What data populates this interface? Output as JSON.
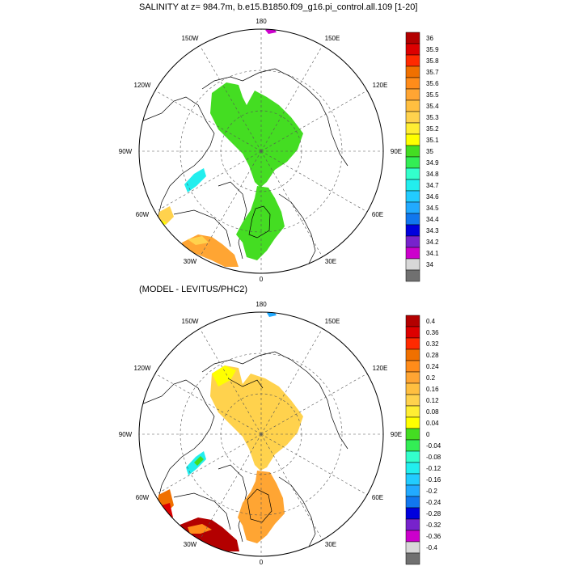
{
  "map1": {
    "title": "SALINITY at z= 984.7m, b.e15.B1850.f09_g16.pi_control.all.109 [1-20]",
    "lon_labels": {
      "top": "180",
      "top_left": "150W",
      "top_right": "150E",
      "upper_left": "120W",
      "upper_right": "120E",
      "left": "90W",
      "right": "90E",
      "lower_left": "60W",
      "lower_right": "60E",
      "bottom_left": "30W",
      "bottom_right": "30E",
      "bottom": "0"
    },
    "colorbar_labels": [
      "36",
      "35.9",
      "35.8",
      "35.7",
      "35.6",
      "35.5",
      "35.4",
      "35.3",
      "35.2",
      "35.1",
      "35",
      "34.9",
      "34.8",
      "34.7",
      "34.6",
      "34.5",
      "34.4",
      "34.3",
      "34.2",
      "34.1",
      "34"
    ],
    "colorbar_colors": [
      "#b30000",
      "#dd0000",
      "#ff2a00",
      "#f07000",
      "#ff8c1a",
      "#ffa533",
      "#ffbf40",
      "#ffd24d",
      "#ffee33",
      "#ffff00",
      "#44dd22",
      "#33ee55",
      "#33ffcc",
      "#22eeee",
      "#22ccff",
      "#22aaff",
      "#1177ee",
      "#0000dd",
      "#7722cc",
      "#cc00cc",
      "#d8d8d8",
      "#707070"
    ]
  },
  "map2": {
    "title": "(MODEL - LEVITUS/PHC2)",
    "lon_labels": {
      "top": "180",
      "top_left": "150W",
      "top_right": "150E",
      "upper_left": "120W",
      "upper_right": "120E",
      "left": "90W",
      "right": "90E",
      "lower_left": "60W",
      "lower_right": "60E",
      "bottom_left": "30W",
      "bottom_right": "30E",
      "bottom": "0"
    },
    "colorbar_labels": [
      "0.4",
      "0.36",
      "0.32",
      "0.28",
      "0.24",
      "0.2",
      "0.16",
      "0.12",
      "0.08",
      "0.04",
      "0",
      "-0.04",
      "-0.08",
      "-0.12",
      "-0.16",
      "-0.2",
      "-0.24",
      "-0.28",
      "-0.32",
      "-0.36",
      "-0.4"
    ],
    "colorbar_colors": [
      "#b30000",
      "#dd0000",
      "#ff2a00",
      "#f07000",
      "#ff8c1a",
      "#ffa533",
      "#ffbf40",
      "#ffd24d",
      "#ffee33",
      "#ffff00",
      "#44dd22",
      "#33ee55",
      "#33ffcc",
      "#22eeee",
      "#22ccff",
      "#22aaff",
      "#1177ee",
      "#0000dd",
      "#7722cc",
      "#cc00cc",
      "#d8d8d8",
      "#707070"
    ]
  }
}
